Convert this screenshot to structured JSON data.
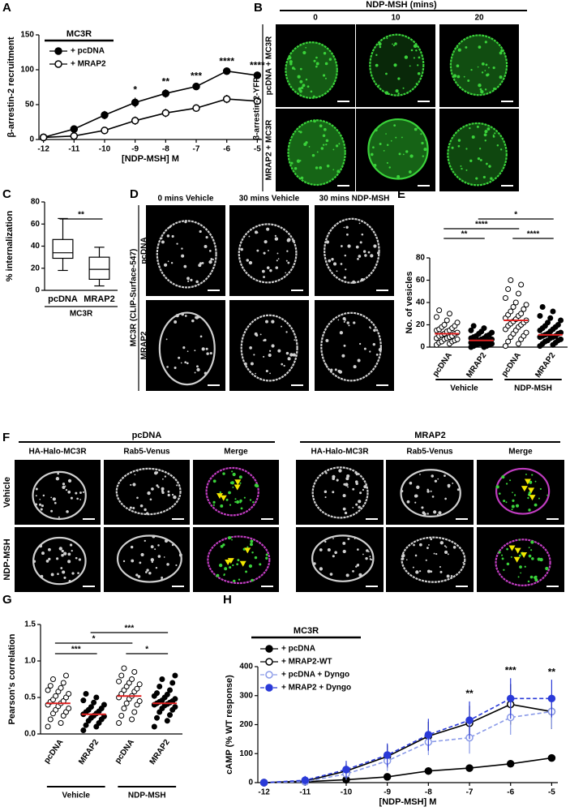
{
  "chart_data": [
    {
      "type": "line",
      "panel": "A",
      "title": "MC3R",
      "x": [
        -12,
        -11,
        -10,
        -9,
        -8,
        -7,
        -6,
        -5
      ],
      "xlim": [
        -12.15,
        -4.85
      ],
      "xticks": [
        -12,
        -11,
        -10,
        -9,
        -8,
        -7,
        -6,
        -5
      ],
      "ylim": [
        0,
        150
      ],
      "yticks": [
        0,
        50,
        100,
        150
      ],
      "xlabel": "[NDP-MSH] M",
      "ylabel": "β-arrestin-2 recruitment",
      "series": [
        {
          "name": "+ pcDNA",
          "color": "#000000",
          "marker": "filled",
          "dashed": false,
          "values": [
            3,
            15,
            35,
            53,
            66,
            76,
            98,
            92
          ],
          "errors": [
            2,
            3,
            6,
            7,
            6,
            4,
            3,
            3
          ]
        },
        {
          "name": "+ MRAP2",
          "color": "#000000",
          "marker": "open",
          "dashed": false,
          "values": [
            3,
            5,
            13,
            27,
            38,
            45,
            58,
            55
          ],
          "errors": [
            2,
            2,
            3,
            6,
            6,
            5,
            6,
            5
          ]
        }
      ],
      "annotations": [
        {
          "x": -9,
          "text": "*"
        },
        {
          "x": -8,
          "text": "**"
        },
        {
          "x": -7,
          "text": "***"
        },
        {
          "x": -6,
          "text": "****"
        },
        {
          "x": -5,
          "text": "****"
        }
      ]
    },
    {
      "type": "box",
      "panel": "C",
      "categories": [
        "pcDNA",
        "MRAP2"
      ],
      "group": "MC3R",
      "ylabel": "% internalization",
      "ylim": [
        0,
        80
      ],
      "yticks": [
        0,
        20,
        40,
        60,
        80
      ],
      "boxes": [
        {
          "min": 18,
          "q1": 29,
          "median": 34,
          "q3": 46,
          "max": 65
        },
        {
          "min": 4,
          "q1": 10,
          "median": 19,
          "q3": 30,
          "max": 39
        }
      ],
      "significance": [
        {
          "from": 0,
          "to": 1,
          "text": "**"
        }
      ]
    },
    {
      "type": "strip",
      "panel": "E",
      "categories": [
        "pcDNA",
        "MRAP2",
        "pcDNA",
        "MRAP2"
      ],
      "groups": [
        {
          "name": "Vehicle",
          "categories": [
            0,
            1
          ]
        },
        {
          "name": "NDP-MSH",
          "categories": [
            2,
            3
          ]
        }
      ],
      "ylabel": "No. of vesicles",
      "ylim": [
        0,
        80
      ],
      "yticks": [
        0,
        20,
        40,
        60,
        80
      ],
      "markers": [
        "open",
        "filled",
        "open",
        "filled"
      ],
      "mean_color": "#e02020",
      "points": [
        [
          2,
          3,
          4,
          5,
          5,
          6,
          7,
          7,
          8,
          8,
          9,
          10,
          10,
          11,
          12,
          12,
          13,
          14,
          15,
          15,
          16,
          17,
          18,
          19,
          20,
          22,
          24,
          27,
          30,
          33
        ],
        [
          0,
          0,
          1,
          1,
          2,
          2,
          3,
          3,
          3,
          4,
          4,
          5,
          5,
          5,
          6,
          6,
          7,
          7,
          8,
          8,
          9,
          10,
          10,
          11,
          12,
          13,
          14,
          15,
          17,
          19
        ],
        [
          1,
          3,
          5,
          7,
          9,
          10,
          12,
          13,
          15,
          16,
          18,
          19,
          20,
          21,
          22,
          23,
          24,
          25,
          26,
          28,
          29,
          30,
          32,
          34,
          36,
          38,
          40,
          44,
          48,
          52,
          56,
          60
        ],
        [
          1,
          2,
          3,
          4,
          5,
          6,
          6,
          7,
          8,
          9,
          9,
          10,
          10,
          11,
          12,
          12,
          13,
          14,
          15,
          16,
          17,
          18,
          19,
          20,
          22,
          24,
          26,
          28,
          32,
          36
        ]
      ],
      "means": [
        12,
        6,
        24,
        11
      ],
      "significance": [
        {
          "from": 0,
          "to": 1,
          "text": "**"
        },
        {
          "from": 0,
          "to": 2,
          "text": "****"
        },
        {
          "from": 1,
          "to": 3,
          "text": "*"
        },
        {
          "from": 2,
          "to": 3,
          "text": "****"
        }
      ]
    },
    {
      "type": "strip",
      "panel": "G",
      "categories": [
        "pcDNA",
        "MRAP2",
        "pcDNA",
        "MRAP2"
      ],
      "groups": [
        {
          "name": "Vehicle",
          "categories": [
            0,
            1
          ]
        },
        {
          "name": "NDP-MSH",
          "categories": [
            2,
            3
          ]
        }
      ],
      "ylabel": "Pearson's correlation",
      "ylim": [
        0,
        1.5
      ],
      "yticks": [
        {
          "value": 0,
          "label": "0.0"
        },
        0.5,
        {
          "value": 1,
          "label": "1.0"
        },
        1.5
      ],
      "markers": [
        "open",
        "filled",
        "open",
        "filled"
      ],
      "mean_color": "#e02020",
      "points": [
        [
          0.1,
          0.15,
          0.2,
          0.25,
          0.28,
          0.3,
          0.33,
          0.35,
          0.38,
          0.4,
          0.42,
          0.44,
          0.45,
          0.47,
          0.5,
          0.52,
          0.55,
          0.58,
          0.6,
          0.63,
          0.66,
          0.7,
          0.75,
          0.8
        ],
        [
          0.05,
          0.1,
          0.12,
          0.15,
          0.18,
          0.2,
          0.22,
          0.24,
          0.25,
          0.27,
          0.28,
          0.3,
          0.31,
          0.33,
          0.35,
          0.37,
          0.4,
          0.43,
          0.46,
          0.5,
          0.55
        ],
        [
          0.15,
          0.2,
          0.25,
          0.3,
          0.35,
          0.4,
          0.42,
          0.45,
          0.48,
          0.5,
          0.52,
          0.55,
          0.58,
          0.6,
          0.62,
          0.65,
          0.68,
          0.7,
          0.72,
          0.75,
          0.8,
          0.85,
          0.9
        ],
        [
          0.1,
          0.18,
          0.22,
          0.26,
          0.3,
          0.33,
          0.35,
          0.37,
          0.39,
          0.4,
          0.41,
          0.42,
          0.43,
          0.44,
          0.45,
          0.46,
          0.48,
          0.5,
          0.52,
          0.54,
          0.56,
          0.6,
          0.65,
          0.7,
          0.75,
          0.8
        ]
      ],
      "means": [
        0.42,
        0.27,
        0.52,
        0.42
      ],
      "significance": [
        {
          "from": 0,
          "to": 1,
          "text": "***"
        },
        {
          "from": 0,
          "to": 2,
          "text": "*"
        },
        {
          "from": 1,
          "to": 3,
          "text": "***"
        },
        {
          "from": 2,
          "to": 3,
          "text": "*"
        }
      ]
    },
    {
      "type": "line",
      "panel": "H",
      "title": "MC3R",
      "x": [
        -12,
        -11,
        -10,
        -9,
        -8,
        -7,
        -6,
        -5
      ],
      "xlim": [
        -12.15,
        -4.85
      ],
      "xticks": [
        -12,
        -11,
        -10,
        -9,
        -8,
        -7,
        -6,
        -5
      ],
      "ylim": [
        0,
        400
      ],
      "yticks": [
        0,
        100,
        200,
        300,
        400
      ],
      "xlabel": "[NDP-MSH] M",
      "ylabel": "cAMP (% WT response)",
      "series": [
        {
          "name": "+ pcDNA",
          "color": "#000000",
          "marker": "filled",
          "dashed": false,
          "values": [
            0,
            3,
            10,
            20,
            40,
            50,
            65,
            85
          ],
          "errors": [
            2,
            2,
            5,
            5,
            8,
            8,
            10,
            8
          ]
        },
        {
          "name": "+ MRAP2-WT",
          "color": "#000000",
          "marker": "open",
          "dashed": false,
          "values": [
            0,
            5,
            40,
            90,
            160,
            205,
            270,
            245
          ],
          "errors": [
            5,
            10,
            25,
            40,
            50,
            60,
            70,
            60
          ]
        },
        {
          "name": "+ pcDNA + Dyngo",
          "color": "#8a9ae8",
          "marker": "open",
          "dashed": true,
          "values": [
            0,
            3,
            30,
            75,
            140,
            155,
            225,
            245
          ],
          "errors": [
            5,
            10,
            20,
            35,
            45,
            55,
            60,
            60
          ]
        },
        {
          "name": "+ MRAP2 + Dyngo",
          "color": "#2a3ad8",
          "marker": "filled",
          "dashed": true,
          "values": [
            0,
            8,
            45,
            95,
            165,
            215,
            290,
            290
          ],
          "errors": [
            5,
            15,
            30,
            40,
            55,
            65,
            70,
            65
          ]
        }
      ],
      "annotations": [
        {
          "x": -7,
          "text": "**"
        },
        {
          "x": -6,
          "text": "***"
        },
        {
          "x": -5,
          "text": "**"
        }
      ]
    }
  ],
  "images": {
    "B": {
      "panel": "B",
      "title": "NDP-MSH (mins)",
      "columns": [
        "0",
        "10",
        "20"
      ],
      "row_group": "β-arrestin-2-YFP",
      "rows": [
        "pcDNA + MC3R",
        "MRAP2 + MC3R"
      ]
    },
    "D": {
      "panel": "D",
      "columns": [
        "0 mins Vehicle",
        "30 mins Vehicle",
        "30 mins NDP-MSH"
      ],
      "row_group": "MC3R (CLIP-Surface-547)",
      "rows": [
        "pcDNA",
        "MRAP2"
      ]
    },
    "F": {
      "panel": "F",
      "groups": [
        {
          "name": "pcDNA",
          "columns": [
            "HA-Halo-MC3R",
            "Rab5-Venus",
            "Merge"
          ]
        },
        {
          "name": "MRAP2",
          "columns": [
            "HA-Halo-MC3R",
            "Rab5-Venus",
            "Merge"
          ]
        }
      ],
      "rows": [
        "Vehicle",
        "NDP-MSH"
      ]
    }
  }
}
